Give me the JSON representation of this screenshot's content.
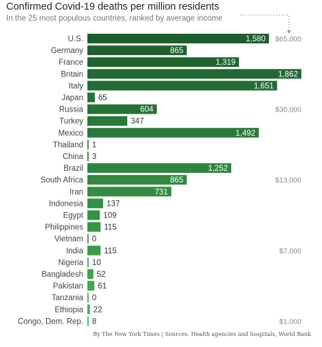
{
  "title": "Confirmed Covid-19 deaths per million residents",
  "subtitle": "In the 25 most populous countries, ranked by average income",
  "source": "By The New York Times | Sources: Health agencies and hospitals, World Bank",
  "colors": {
    "dark": "#1d5e2e",
    "light": "#45b253"
  },
  "chart_data": {
    "type": "bar",
    "orientation": "horizontal",
    "xlim": [
      0,
      1862
    ],
    "categories": [
      "U.S.",
      "Germany",
      "France",
      "Britain",
      "Italy",
      "Japan",
      "Russia",
      "Turkey",
      "Mexico",
      "Thailand",
      "China",
      "Brazil",
      "South Africa",
      "Iran",
      "Indonesia",
      "Egypt",
      "Philippines",
      "Vietnam",
      "India",
      "Nigeria",
      "Bangladesh",
      "Pakistan",
      "Tanzania",
      "Ethiopia",
      "Congo, Dem. Rep."
    ],
    "values": [
      1580,
      865,
      1319,
      1862,
      1651,
      65,
      604,
      347,
      1492,
      1,
      3,
      1252,
      865,
      731,
      137,
      109,
      115,
      0,
      115,
      10,
      52,
      61,
      0,
      22,
      8
    ],
    "value_labels": [
      "1,580",
      "865",
      "1,319",
      "1,862",
      "1,651",
      "65",
      "604",
      "347",
      "1,492",
      "1",
      "3",
      "1,252",
      "865",
      "731",
      "137",
      "109",
      "115",
      "0",
      "115",
      "10",
      "52",
      "61",
      "0",
      "22",
      "8"
    ],
    "income_labels": [
      {
        "category": "U.S.",
        "label": "$65,000"
      },
      {
        "category": "Russia",
        "label": "$30,000"
      },
      {
        "category": "South Africa",
        "label": "$13,000"
      },
      {
        "category": "India",
        "label": "$7,000"
      },
      {
        "category": "Congo, Dem. Rep.",
        "label": "$1,000"
      }
    ]
  }
}
